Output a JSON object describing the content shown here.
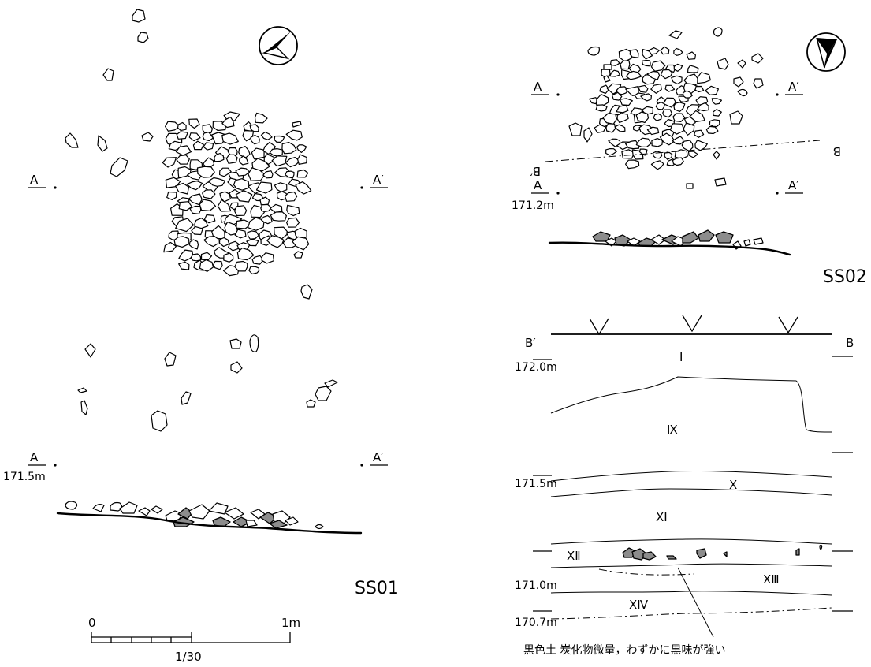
{
  "ss01": {
    "name": "SS01",
    "plan_left_label": "A",
    "plan_right_label": "A′",
    "section_left_label": "A",
    "section_elevation": "171.5m",
    "section_right_label": "A′"
  },
  "ss02": {
    "name": "SS02",
    "plan_left_label": "A",
    "plan_right_label": "A′",
    "b_line_left_label": "B′",
    "b_line_right_label": "B",
    "section_left_label": "A",
    "section_elevation": "171.2m",
    "section_right_label": "A′"
  },
  "profile": {
    "left_label": "B′",
    "right_label": "B",
    "elevations": [
      "172.0m",
      "171.5m",
      "171.0m",
      "170.7m"
    ],
    "layers": [
      "Ⅰ",
      "Ⅸ",
      "Ⅹ",
      "ⅩⅠ",
      "ⅩⅡ",
      "ⅩⅢ",
      "ⅩⅣ"
    ],
    "annotation": "黒色土  炭化物微量，わずかに黒味が強い"
  },
  "scale": {
    "start": "0",
    "end": "1m",
    "ratio": "1/30"
  }
}
